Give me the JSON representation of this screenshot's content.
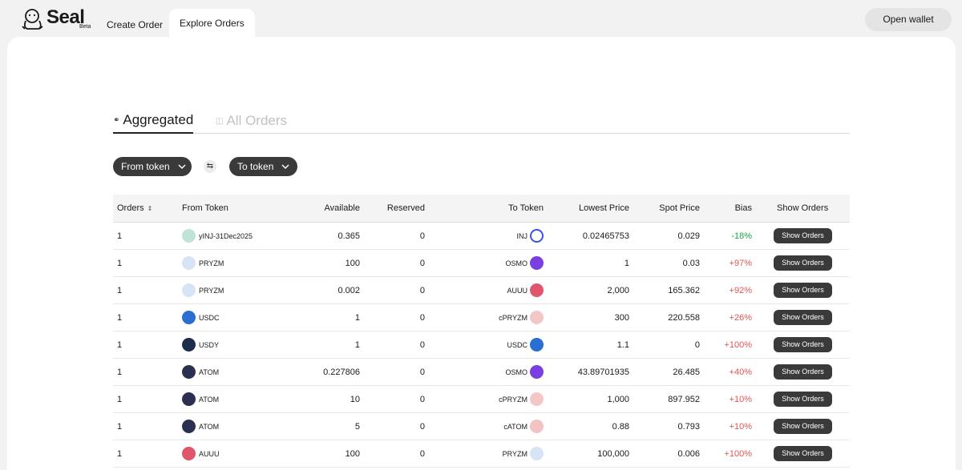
{
  "app": {
    "name": "Seal",
    "badge": "Beta"
  },
  "nav": {
    "create_order": "Create Order",
    "explore_orders": "Explore Orders",
    "open_wallet": "Open wallet"
  },
  "view_tabs": {
    "aggregated": "Aggregated",
    "all_orders": "All Orders"
  },
  "filters": {
    "from_token": "From token",
    "to_token": "To token"
  },
  "colors": {
    "accent_dark": "#3a3a3a",
    "positive_bias": "#e05555",
    "negative_bias": "#1fa34a"
  },
  "table": {
    "headers": {
      "orders": "Orders",
      "from_token": "From Token",
      "available": "Available",
      "reserved": "Reserved",
      "to_token": "To Token",
      "lowest_price": "Lowest Price",
      "spot_price": "Spot Price",
      "bias": "Bias",
      "show_orders": "Show Orders"
    },
    "rows": [
      {
        "orders": "1",
        "from": "yINJ-31Dec2025",
        "from_icon": "yinj",
        "available": "0.365",
        "reserved": "0",
        "to": "INJ",
        "to_icon": "inj",
        "lowest": "0.02465753",
        "spot": "0.029",
        "bias": "-18%",
        "bias_sign": "neg",
        "action": "Show Orders"
      },
      {
        "orders": "1",
        "from": "PRYZM",
        "from_icon": "pryzm",
        "available": "100",
        "reserved": "0",
        "to": "OSMO",
        "to_icon": "osmo",
        "lowest": "1",
        "spot": "0.03",
        "bias": "+97%",
        "bias_sign": "pos",
        "action": "Show Orders"
      },
      {
        "orders": "1",
        "from": "PRYZM",
        "from_icon": "pryzm",
        "available": "0.002",
        "reserved": "0",
        "to": "AUUU",
        "to_icon": "auuu",
        "lowest": "2,000",
        "spot": "165.362",
        "bias": "+92%",
        "bias_sign": "pos",
        "action": "Show Orders"
      },
      {
        "orders": "1",
        "from": "USDC",
        "from_icon": "usdc",
        "available": "1",
        "reserved": "0",
        "to": "cPRYZM",
        "to_icon": "cpryzm",
        "lowest": "300",
        "spot": "220.558",
        "bias": "+26%",
        "bias_sign": "pos",
        "action": "Show Orders"
      },
      {
        "orders": "1",
        "from": "USDY",
        "from_icon": "usdy",
        "available": "1",
        "reserved": "0",
        "to": "USDC",
        "to_icon": "usdc",
        "lowest": "1.1",
        "spot": "0",
        "bias": "+100%",
        "bias_sign": "pos",
        "action": "Show Orders"
      },
      {
        "orders": "1",
        "from": "ATOM",
        "from_icon": "atom",
        "available": "0.227806",
        "reserved": "0",
        "to": "OSMO",
        "to_icon": "osmo",
        "lowest": "43.89701935",
        "spot": "26.485",
        "bias": "+40%",
        "bias_sign": "pos",
        "action": "Show Orders"
      },
      {
        "orders": "1",
        "from": "ATOM",
        "from_icon": "atom",
        "available": "10",
        "reserved": "0",
        "to": "cPRYZM",
        "to_icon": "cpryzm",
        "lowest": "1,000",
        "spot": "897.952",
        "bias": "+10%",
        "bias_sign": "pos",
        "action": "Show Orders"
      },
      {
        "orders": "1",
        "from": "ATOM",
        "from_icon": "atom",
        "available": "5",
        "reserved": "0",
        "to": "cATOM",
        "to_icon": "catom",
        "lowest": "0.88",
        "spot": "0.793",
        "bias": "+10%",
        "bias_sign": "pos",
        "action": "Show Orders"
      },
      {
        "orders": "1",
        "from": "AUUU",
        "from_icon": "auuu",
        "available": "100",
        "reserved": "0",
        "to": "PRYZM",
        "to_icon": "pryzm",
        "lowest": "100,000",
        "spot": "0.006",
        "bias": "+100%",
        "bias_sign": "pos",
        "action": "Show Orders"
      }
    ]
  }
}
